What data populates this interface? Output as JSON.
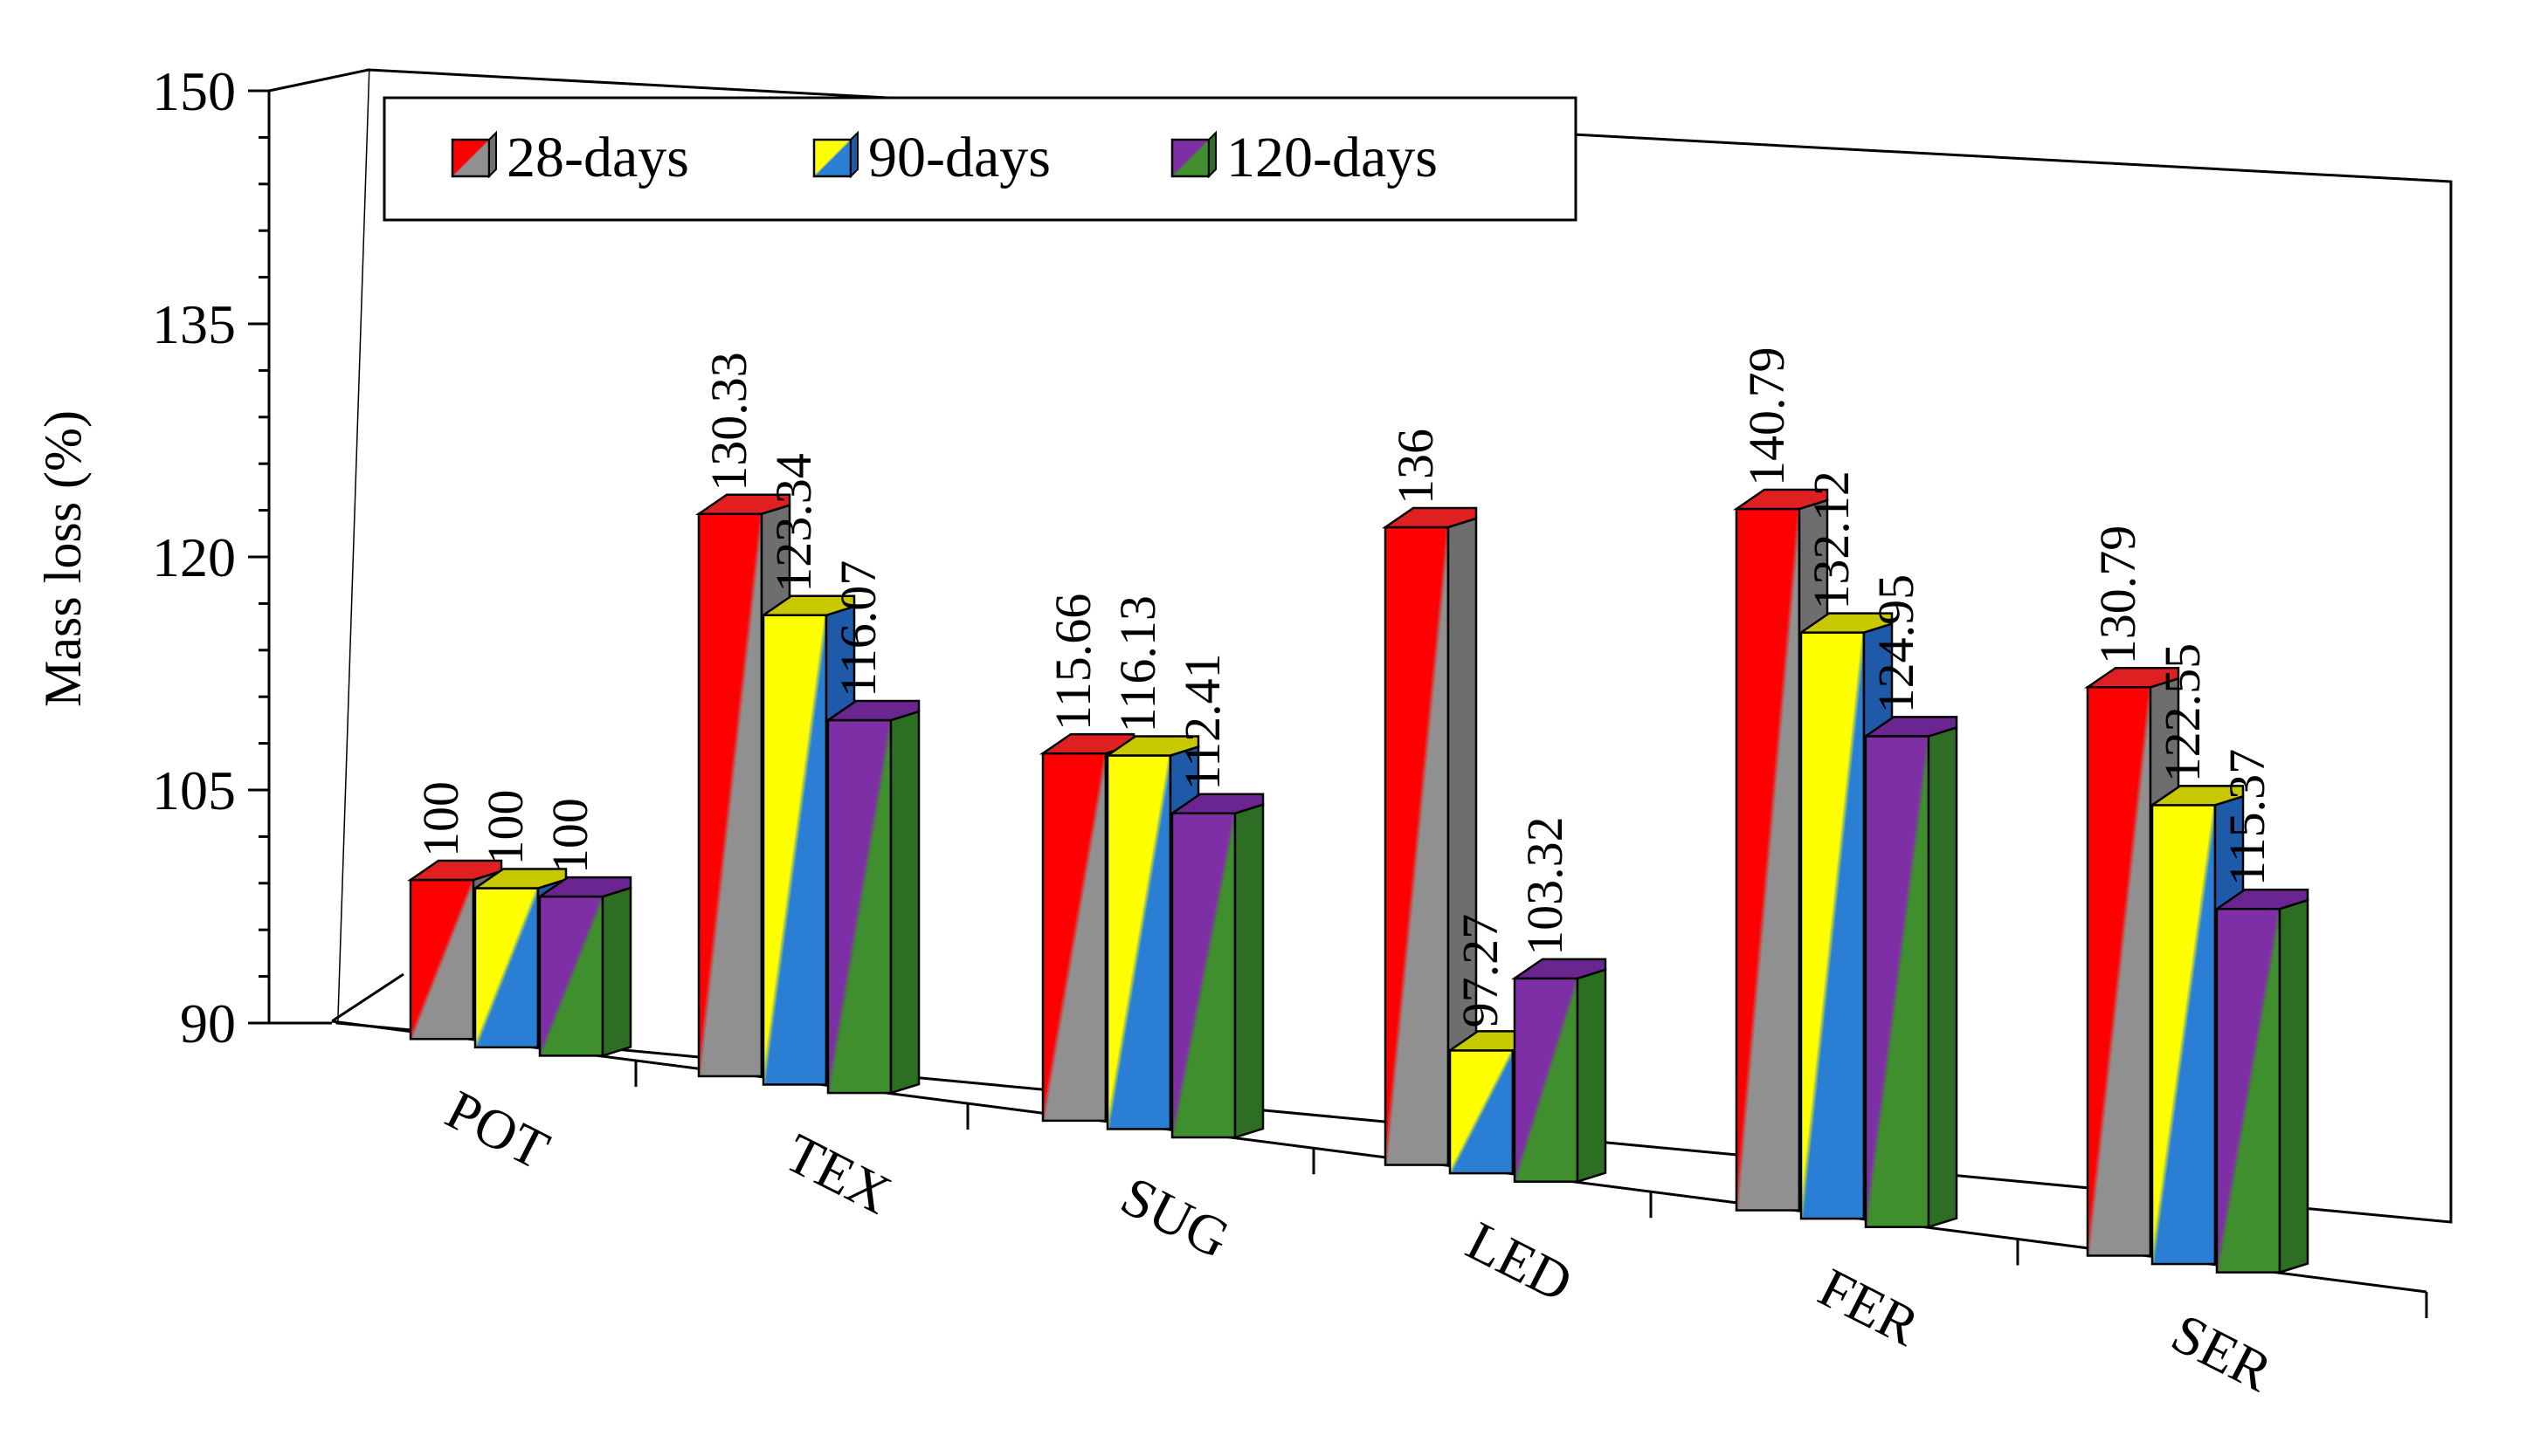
{
  "chart_data": {
    "type": "bar",
    "title": "",
    "xlabel": "",
    "ylabel": "Mass loss (%)",
    "ylim": [
      90,
      150
    ],
    "yticks": [
      "90",
      "105",
      "120",
      "135",
      "150"
    ],
    "grid": false,
    "legend_position": "top-left",
    "categories": [
      "POT",
      "TEX",
      "SUG",
      "LED",
      "FER",
      "SER"
    ],
    "series": [
      {
        "name": "28-days",
        "values": [
          100,
          130.33,
          115.66,
          136,
          140.79,
          130.79
        ],
        "labels": [
          "100",
          "130.33",
          "115.66",
          "136",
          "140.79",
          "130.79"
        ],
        "colors": {
          "front_a": "#ff0000",
          "front_b": "#909090",
          "side": "#6e6e6e",
          "top": "#e02020"
        }
      },
      {
        "name": "90-days",
        "values": [
          100,
          123.34,
          116.13,
          97.27,
          132.12,
          122.55
        ],
        "labels": [
          "100",
          "123.34",
          "116.13",
          "97.27",
          "132.12",
          "122.55"
        ],
        "colors": {
          "front_a": "#ffff00",
          "front_b": "#2a7fd4",
          "side": "#1f5aa8",
          "top": "#c8c800"
        }
      },
      {
        "name": "120-days",
        "values": [
          100,
          116.07,
          112.41,
          103.32,
          124.95,
          115.37
        ],
        "labels": [
          "100",
          "116.07",
          "112.41",
          "103.32",
          "124.95",
          "115.37"
        ],
        "colors": {
          "front_a": "#7f2fa6",
          "front_b": "#3f8f2f",
          "side": "#2c6e22",
          "top": "#6a2590"
        }
      }
    ]
  }
}
